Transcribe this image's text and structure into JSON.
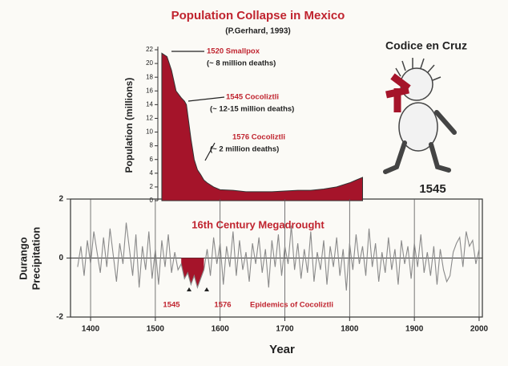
{
  "chart_data": [
    {
      "type": "area",
      "title": "Population Collapse in Mexico",
      "subtitle": "(P.Gerhard, 1993)",
      "ylabel": "Population (millions)",
      "color": "#a5142a",
      "x": [
        1510,
        1518,
        1525,
        1532,
        1540,
        1545,
        1548,
        1555,
        1560,
        1565,
        1570,
        1575,
        1580,
        1590,
        1600,
        1620,
        1640,
        1660,
        1680,
        1700,
        1720,
        1740,
        1760,
        1780,
        1800,
        1810,
        1820
      ],
      "values": [
        21.5,
        21,
        19,
        16,
        15,
        14.5,
        14,
        9,
        6,
        4.5,
        3.8,
        3,
        2.6,
        2,
        1.6,
        1.5,
        1.3,
        1.3,
        1.3,
        1.4,
        1.5,
        1.5,
        1.7,
        2,
        2.6,
        3,
        3.4
      ],
      "xlim": [
        1369,
        2005
      ],
      "ylim": [
        0,
        22
      ],
      "yticks": [
        0,
        2,
        4,
        6,
        8,
        10,
        12,
        14,
        16,
        18,
        20,
        22
      ],
      "annotations": [
        "1520 Smallpox",
        "(~ 8 million deaths)",
        "1545 Cocoliztli",
        "(~ 12-15 million deaths)",
        "1576 Cocoliztli",
        "(~ 2 million deaths)"
      ]
    },
    {
      "type": "line",
      "title": "16th Century Megadrought",
      "ylabel": [
        "Durango",
        "Precipitation"
      ],
      "xlabel": "Year",
      "color": "#8a8a8a",
      "fill_color": "#a5142a",
      "fill_negative_range": [
        1540,
        1580
      ],
      "grid": true,
      "x": [
        1380,
        1385,
        1390,
        1395,
        1400,
        1405,
        1410,
        1415,
        1420,
        1425,
        1430,
        1435,
        1440,
        1445,
        1450,
        1455,
        1460,
        1465,
        1470,
        1475,
        1480,
        1485,
        1490,
        1495,
        1500,
        1505,
        1510,
        1515,
        1520,
        1525,
        1530,
        1535,
        1540,
        1545,
        1550,
        1555,
        1560,
        1565,
        1570,
        1575,
        1580,
        1585,
        1590,
        1595,
        1600,
        1605,
        1610,
        1615,
        1620,
        1625,
        1630,
        1635,
        1640,
        1645,
        1650,
        1655,
        1660,
        1665,
        1670,
        1675,
        1680,
        1685,
        1690,
        1695,
        1700,
        1705,
        1710,
        1715,
        1720,
        1725,
        1730,
        1735,
        1740,
        1745,
        1750,
        1755,
        1760,
        1765,
        1770,
        1775,
        1780,
        1785,
        1790,
        1795,
        1800,
        1805,
        1810,
        1815,
        1820,
        1825,
        1830,
        1835,
        1840,
        1845,
        1850,
        1855,
        1860,
        1865,
        1870,
        1875,
        1880,
        1885,
        1890,
        1895,
        1900,
        1905,
        1910,
        1915,
        1920,
        1925,
        1930,
        1935,
        1940,
        1945,
        1950,
        1955,
        1960,
        1965,
        1970,
        1975,
        1980,
        1985,
        1990,
        1995,
        2000
      ],
      "values": [
        -0.3,
        0.4,
        -0.6,
        0.6,
        -0.2,
        0.9,
        0.2,
        -0.5,
        0.7,
        -0.3,
        1.0,
        0.1,
        -0.8,
        0.5,
        -0.2,
        1.2,
        0.3,
        -0.6,
        0.8,
        -1.0,
        0.4,
        -0.4,
        0.9,
        -0.7,
        0.3,
        -0.9,
        0.6,
        -0.3,
        0.8,
        -0.5,
        0.2,
        -0.4,
        -0.2,
        -0.7,
        -0.5,
        -0.9,
        -0.6,
        -1.0,
        -0.7,
        -0.4,
        0.3,
        -0.6,
        0.7,
        -0.2,
        0.5,
        -0.9,
        0.4,
        -0.3,
        0.9,
        -0.6,
        0.6,
        -0.4,
        0.2,
        -0.8,
        0.5,
        -0.2,
        0.7,
        -0.5,
        0.3,
        -1.0,
        0.6,
        -0.3,
        0.8,
        -0.6,
        0.4,
        -0.2,
        1.1,
        -0.4,
        0.5,
        -0.7,
        0.3,
        -0.5,
        0.9,
        -0.8,
        0.2,
        -0.4,
        0.6,
        -0.9,
        0.4,
        -0.3,
        0.7,
        -0.6,
        0.3,
        -1.1,
        0.5,
        -0.4,
        0.8,
        -0.2,
        0.4,
        -0.6,
        1.0,
        -0.3,
        0.5,
        -0.8,
        0.2,
        -0.5,
        0.7,
        -0.4,
        0.3,
        -0.9,
        0.6,
        -0.2,
        0.4,
        -0.7,
        0.5,
        -0.3,
        0.8,
        -0.5,
        0.2,
        -0.6,
        0.4,
        -0.9,
        0.3,
        -0.4,
        -0.8,
        -0.6,
        0.2,
        0.5,
        0.7,
        -0.3,
        0.9,
        0.4,
        0.6,
        -0.2,
        0.3
      ],
      "xlim": [
        1369,
        2005
      ],
      "ylim": [
        -2,
        2
      ],
      "yticks": [
        2,
        0,
        -2
      ],
      "xticks": [
        1400,
        1500,
        1600,
        1700,
        1800,
        1900,
        2000
      ],
      "annotations": [
        "1545",
        "1576",
        "Epidemics of Cocoliztli"
      ]
    }
  ],
  "illustration": {
    "title": "Codice en Cruz",
    "caption": "1545"
  }
}
